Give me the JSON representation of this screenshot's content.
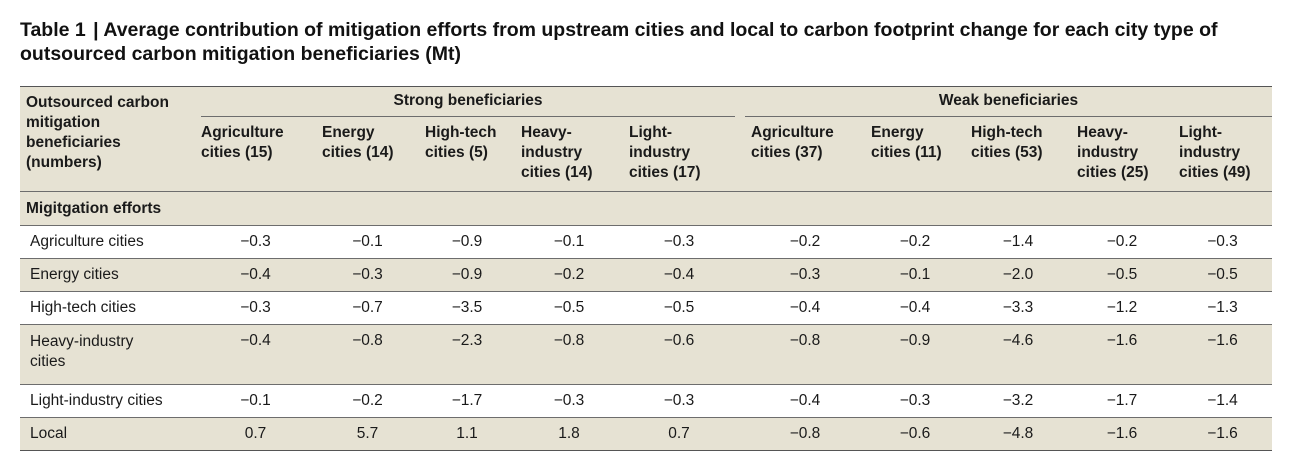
{
  "title": {
    "label": "Table 1",
    "separator": "|",
    "text": "Average contribution of mitigation efforts from upstream cities and local to carbon footprint change for each city type of outsourced carbon mitigation beneficiaries (Mt)"
  },
  "header": {
    "stub": "Outsourced carbon mitigation beneficiaries (numbers)",
    "groups": [
      "Strong beneficiaries",
      "Weak beneficiaries"
    ],
    "columns": [
      "Agriculture cities (15)",
      "Energy cities (14)",
      "High-tech cities (5)",
      "Heavy-industry cities (14)",
      "Light-industry cities (17)",
      "Agriculture cities (37)",
      "Energy cities (11)",
      "High-tech cities (53)",
      "Heavy-industry cities (25)",
      "Light-industry cities (49)"
    ]
  },
  "section_label": "Migitgation efforts",
  "rows": [
    {
      "label": "Agriculture cities",
      "values": [
        "−0.3",
        "−0.1",
        "−0.9",
        "−0.1",
        "−0.3",
        "−0.2",
        "−0.2",
        "−1.4",
        "−0.2",
        "−0.3"
      ]
    },
    {
      "label": "Energy cities",
      "values": [
        "−0.4",
        "−0.3",
        "−0.9",
        "−0.2",
        "−0.4",
        "−0.3",
        "−0.1",
        "−2.0",
        "−0.5",
        "−0.5"
      ]
    },
    {
      "label": "High-tech cities",
      "values": [
        "−0.3",
        "−0.7",
        "−3.5",
        "−0.5",
        "−0.5",
        "−0.4",
        "−0.4",
        "−3.3",
        "−1.2",
        "−1.3"
      ]
    },
    {
      "label": "Heavy-industry cities",
      "values": [
        "−0.4",
        "−0.8",
        "−2.3",
        "−0.8",
        "−0.6",
        "−0.8",
        "−0.9",
        "−4.6",
        "−1.6",
        "−1.6"
      ]
    },
    {
      "label": "Light-industry cities",
      "values": [
        "−0.1",
        "−0.2",
        "−1.7",
        "−0.3",
        "−0.3",
        "−0.4",
        "−0.3",
        "−3.2",
        "−1.7",
        "−1.4"
      ]
    },
    {
      "label": "Local",
      "values": [
        "0.7",
        "5.7",
        "1.1",
        "1.8",
        "0.7",
        "−0.8",
        "−0.6",
        "−4.8",
        "−1.6",
        "−1.6"
      ]
    }
  ],
  "colors": {
    "header_band": "#e6e2d3",
    "rule": "#6d6d6d",
    "text": "#1a1a1a"
  }
}
